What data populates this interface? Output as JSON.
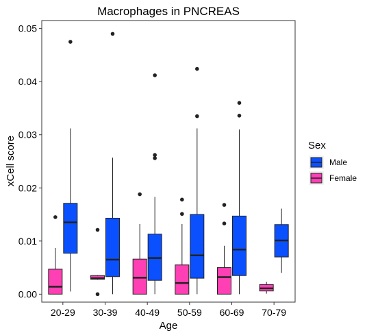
{
  "chart_data": {
    "type": "boxplot",
    "title": "Macrophages in PNCREAS",
    "xlabel": "Age",
    "ylabel": "xCell score",
    "categories": [
      "20-29",
      "30-39",
      "40-49",
      "50-59",
      "60-69",
      "70-79"
    ],
    "ylim": [
      -0.0015,
      0.0515
    ],
    "yticks": [
      0.0,
      0.01,
      0.02,
      0.03,
      0.04,
      0.05
    ],
    "ytick_labels": [
      "0.00",
      "0.01",
      "0.02",
      "0.03",
      "0.04",
      "0.05"
    ],
    "grid": false,
    "legend": {
      "title": "Sex",
      "placement": "right"
    },
    "series": [
      {
        "name": "Female",
        "color": "#FF3FB4",
        "boxes": [
          {
            "category": "20-29",
            "whisker_low": 0.0,
            "q1": 0.0,
            "median": 0.0014,
            "q3": 0.0047,
            "whisker_high": 0.0087,
            "outliers": [
              0.0145
            ]
          },
          {
            "category": "30-39",
            "whisker_low": 0.0027,
            "q1": 0.0028,
            "median": 0.003,
            "q3": 0.0035,
            "whisker_high": 0.0036,
            "outliers": [
              0.0121,
              0.0
            ]
          },
          {
            "category": "40-49",
            "whisker_low": 0.0,
            "q1": 0.0,
            "median": 0.0031,
            "q3": 0.0066,
            "whisker_high": 0.0132,
            "outliers": [
              0.0188
            ]
          },
          {
            "category": "50-59",
            "whisker_low": 0.0,
            "q1": 0.0,
            "median": 0.0021,
            "q3": 0.0055,
            "whisker_high": 0.0132,
            "outliers": [
              0.0151,
              0.0178
            ]
          },
          {
            "category": "60-69",
            "whisker_low": 0.0,
            "q1": 0.0,
            "median": 0.0032,
            "q3": 0.005,
            "whisker_high": 0.0091,
            "outliers": [
              0.0133,
              0.0168
            ]
          },
          {
            "category": "70-79",
            "whisker_low": 0.0001,
            "q1": 0.0006,
            "median": 0.0011,
            "q3": 0.0018,
            "whisker_high": 0.0023,
            "outliers": []
          }
        ]
      },
      {
        "name": "Male",
        "color": "#0A50FF",
        "boxes": [
          {
            "category": "20-29",
            "whisker_low": 0.0005,
            "q1": 0.0077,
            "median": 0.0135,
            "q3": 0.0171,
            "whisker_high": 0.0312,
            "outliers": [
              0.0475
            ]
          },
          {
            "category": "30-39",
            "whisker_low": 0.0,
            "q1": 0.0033,
            "median": 0.0065,
            "q3": 0.0143,
            "whisker_high": 0.0257,
            "outliers": [
              0.049
            ]
          },
          {
            "category": "40-49",
            "whisker_low": 0.0,
            "q1": 0.0026,
            "median": 0.0068,
            "q3": 0.0113,
            "whisker_high": 0.0183,
            "outliers": [
              0.0256,
              0.0262,
              0.0412
            ]
          },
          {
            "category": "50-59",
            "whisker_low": 0.0,
            "q1": 0.003,
            "median": 0.0073,
            "q3": 0.015,
            "whisker_high": 0.0312,
            "outliers": [
              0.0335,
              0.0424
            ]
          },
          {
            "category": "60-69",
            "whisker_low": 0.0,
            "q1": 0.0035,
            "median": 0.0084,
            "q3": 0.0147,
            "whisker_high": 0.031,
            "outliers": [
              0.0336,
              0.036
            ]
          },
          {
            "category": "70-79",
            "whisker_low": 0.004,
            "q1": 0.007,
            "median": 0.0101,
            "q3": 0.0131,
            "whisker_high": 0.0161,
            "outliers": []
          }
        ]
      }
    ],
    "legend_order": [
      "Male",
      "Female"
    ]
  }
}
